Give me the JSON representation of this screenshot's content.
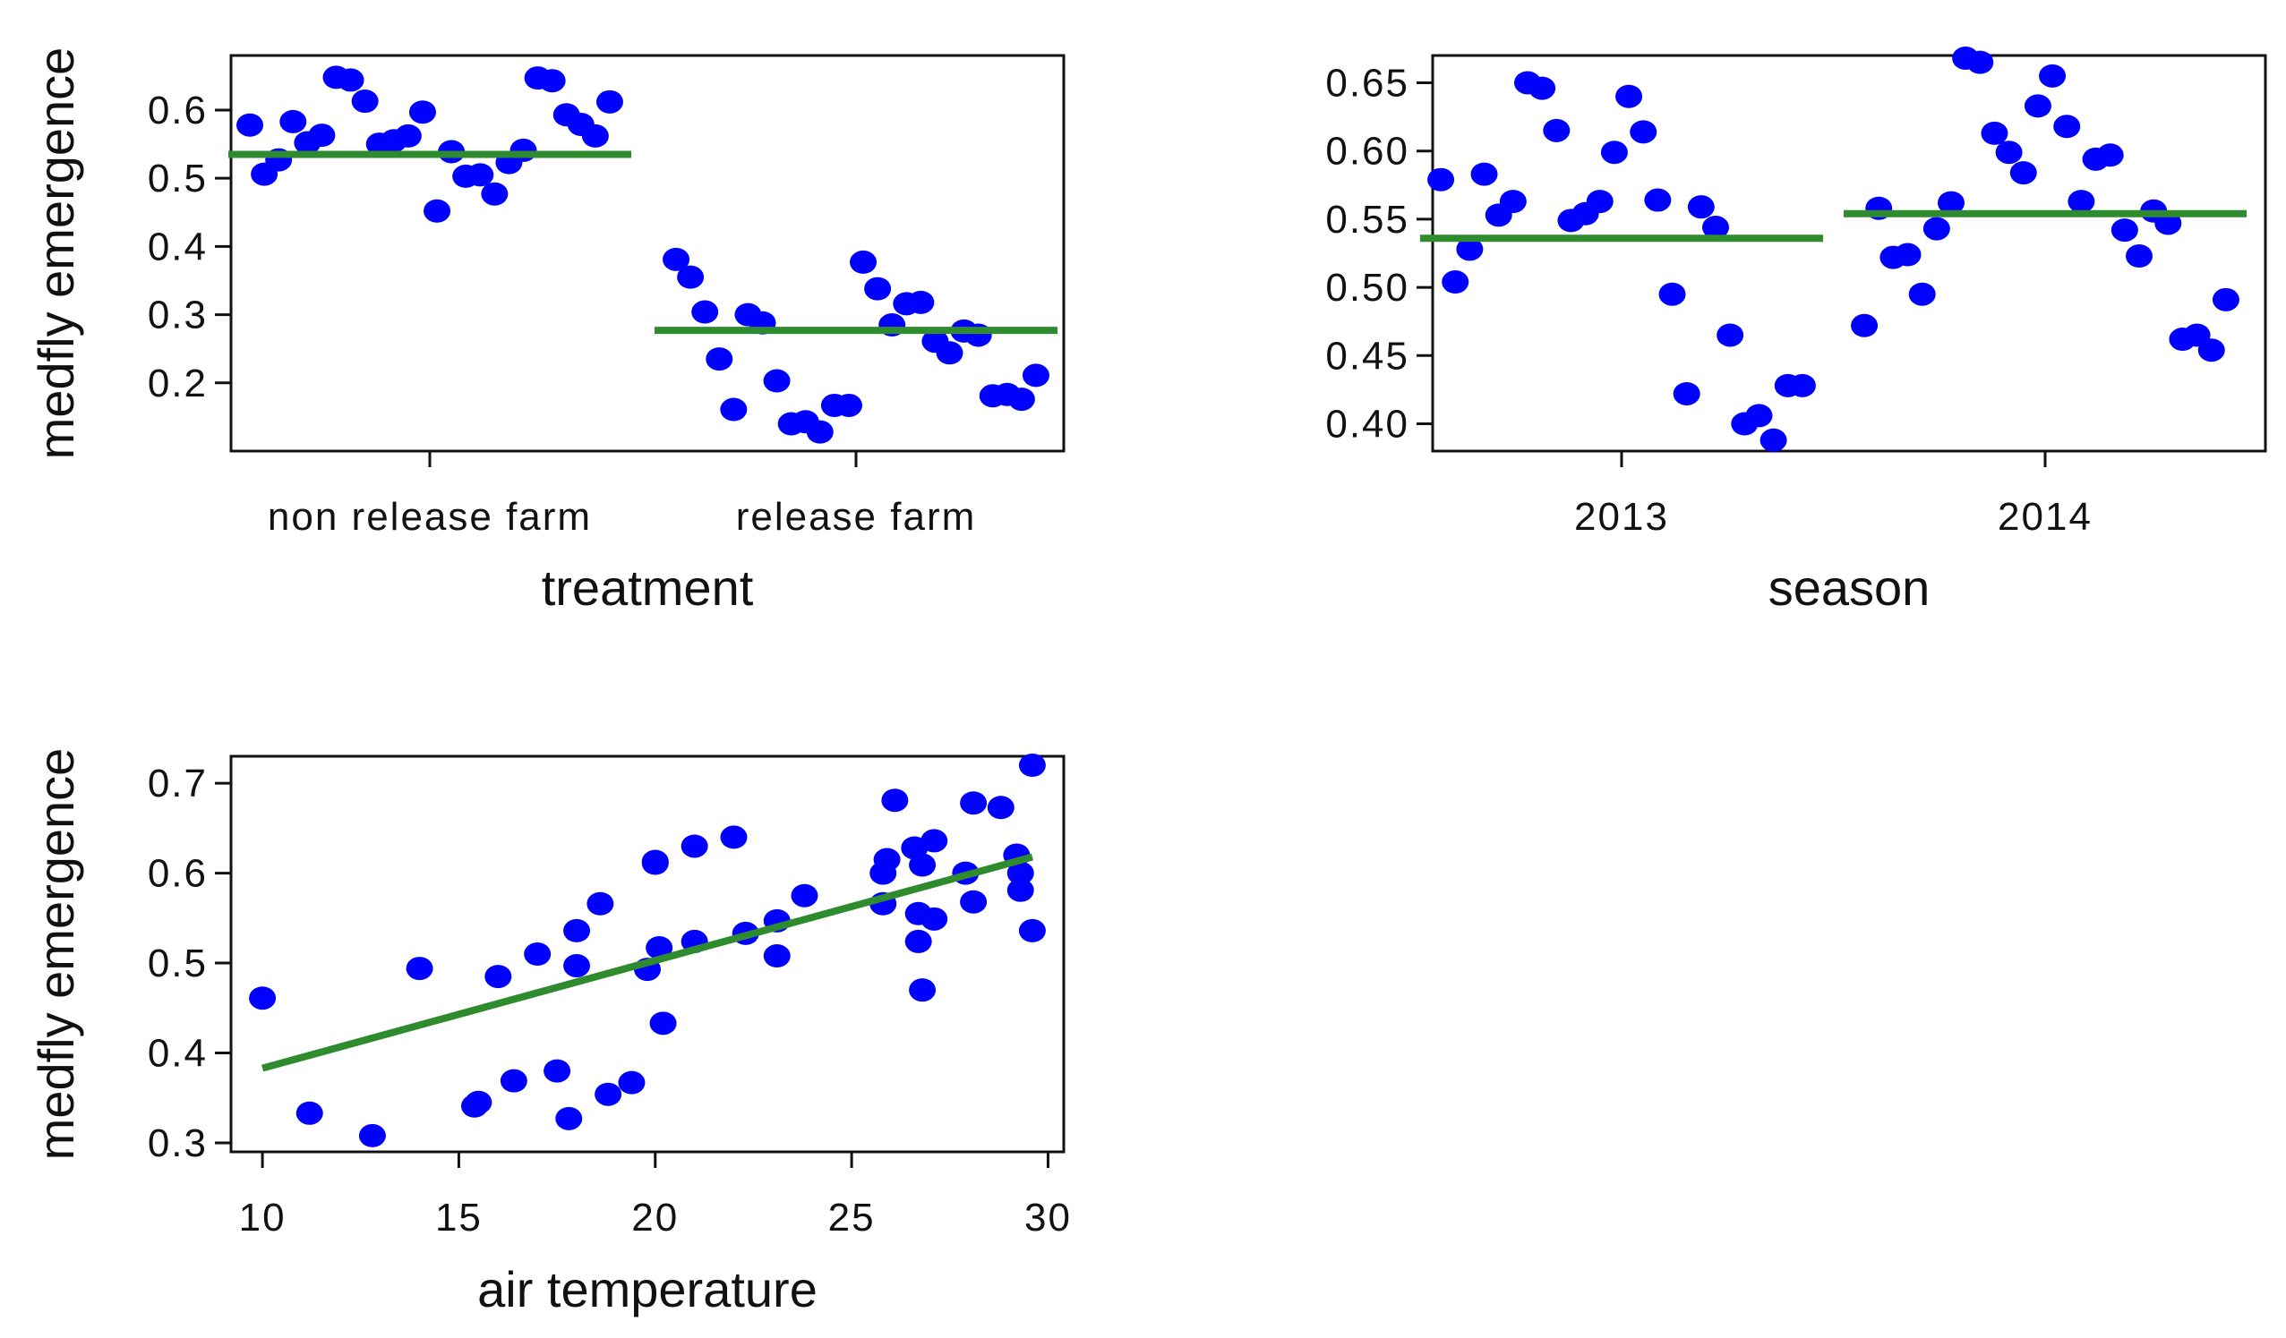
{
  "colors": {
    "points": "#0000ff",
    "fit": "#2e8b2e",
    "axis": "#111111"
  },
  "chart_data": [
    {
      "type": "scatter",
      "x_type": "categorical",
      "xlabel": "treatment",
      "ylabel": "medfly emergence",
      "categories": [
        "non release farm",
        "release farm"
      ],
      "ylim": [
        0.1,
        0.68
      ],
      "yticks": [
        "0.2",
        "0.3",
        "0.4",
        "0.5",
        "0.6"
      ],
      "fit_values": [
        0.535,
        0.277
      ],
      "series": [
        {
          "name": "non release farm",
          "values": [
            0.578,
            0.506,
            0.527,
            0.583,
            0.552,
            0.563,
            0.648,
            0.644,
            0.613,
            0.55,
            0.555,
            0.562,
            0.597,
            0.452,
            0.539,
            0.503,
            0.505,
            0.477,
            0.523,
            0.541,
            0.647,
            0.643,
            0.593,
            0.579,
            0.562,
            0.612
          ]
        },
        {
          "name": "release farm",
          "values": [
            0.381,
            0.355,
            0.304,
            0.235,
            0.161,
            0.3,
            0.288,
            0.203,
            0.14,
            0.143,
            0.128,
            0.167,
            0.167,
            0.377,
            0.338,
            0.285,
            0.316,
            0.318,
            0.261,
            0.244,
            0.276,
            0.27,
            0.181,
            0.183,
            0.176,
            0.211
          ]
        }
      ]
    },
    {
      "type": "scatter",
      "x_type": "categorical",
      "xlabel": "season",
      "ylabel": "",
      "categories": [
        "2013",
        "2014"
      ],
      "ylim": [
        0.38,
        0.67
      ],
      "yticks": [
        "0.40",
        "0.45",
        "0.50",
        "0.55",
        "0.60",
        "0.65"
      ],
      "fit_values": [
        0.536,
        0.554
      ],
      "series": [
        {
          "name": "2013",
          "values": [
            0.579,
            0.504,
            0.528,
            0.583,
            0.553,
            0.563,
            0.65,
            0.646,
            0.615,
            0.549,
            0.554,
            0.563,
            0.599,
            0.64,
            0.614,
            0.564,
            0.495,
            0.422,
            0.559,
            0.544,
            0.465,
            0.4,
            0.406,
            0.388,
            0.428,
            0.428
          ]
        },
        {
          "name": "2014",
          "values": [
            0.472,
            0.558,
            0.522,
            0.524,
            0.495,
            0.543,
            0.562,
            0.668,
            0.665,
            0.613,
            0.599,
            0.584,
            0.633,
            0.655,
            0.618,
            0.563,
            0.594,
            0.597,
            0.542,
            0.523,
            0.556,
            0.547,
            0.462,
            0.465,
            0.454,
            0.491
          ]
        }
      ]
    },
    {
      "type": "scatter",
      "x_type": "numeric",
      "xlabel": "air temperature",
      "ylabel": "medfly emergence",
      "xlim": [
        9.2,
        30.4
      ],
      "ylim": [
        0.29,
        0.73
      ],
      "xticks": [
        "10",
        "15",
        "20",
        "25",
        "30"
      ],
      "yticks": [
        "0.3",
        "0.4",
        "0.5",
        "0.6",
        "0.7"
      ],
      "fit_line": {
        "x": [
          10,
          29.6
        ],
        "y": [
          0.383,
          0.618
        ]
      },
      "points": {
        "x": [
          10.0,
          11.2,
          12.8,
          14.0,
          15.4,
          15.5,
          16.0,
          16.4,
          17.0,
          17.5,
          17.8,
          18.0,
          18.0,
          18.6,
          18.8,
          19.4,
          19.8,
          20.0,
          20.0,
          20.1,
          20.2,
          21.0,
          21.0,
          22.0,
          22.3,
          23.1,
          23.1,
          23.8,
          25.8,
          25.8,
          25.9,
          26.1,
          26.6,
          26.7,
          26.7,
          26.8,
          26.8,
          27.1,
          27.1,
          27.9,
          28.1,
          28.1,
          28.8,
          29.2,
          29.3,
          29.3,
          29.6,
          29.6
        ],
        "y": [
          0.461,
          0.333,
          0.308,
          0.494,
          0.341,
          0.345,
          0.485,
          0.369,
          0.51,
          0.38,
          0.327,
          0.536,
          0.497,
          0.566,
          0.354,
          0.367,
          0.493,
          0.611,
          0.613,
          0.517,
          0.433,
          0.63,
          0.524,
          0.64,
          0.533,
          0.547,
          0.508,
          0.575,
          0.6,
          0.566,
          0.615,
          0.681,
          0.628,
          0.524,
          0.555,
          0.609,
          0.47,
          0.636,
          0.549,
          0.6,
          0.678,
          0.568,
          0.673,
          0.62,
          0.6,
          0.581,
          0.72,
          0.536
        ]
      }
    }
  ]
}
